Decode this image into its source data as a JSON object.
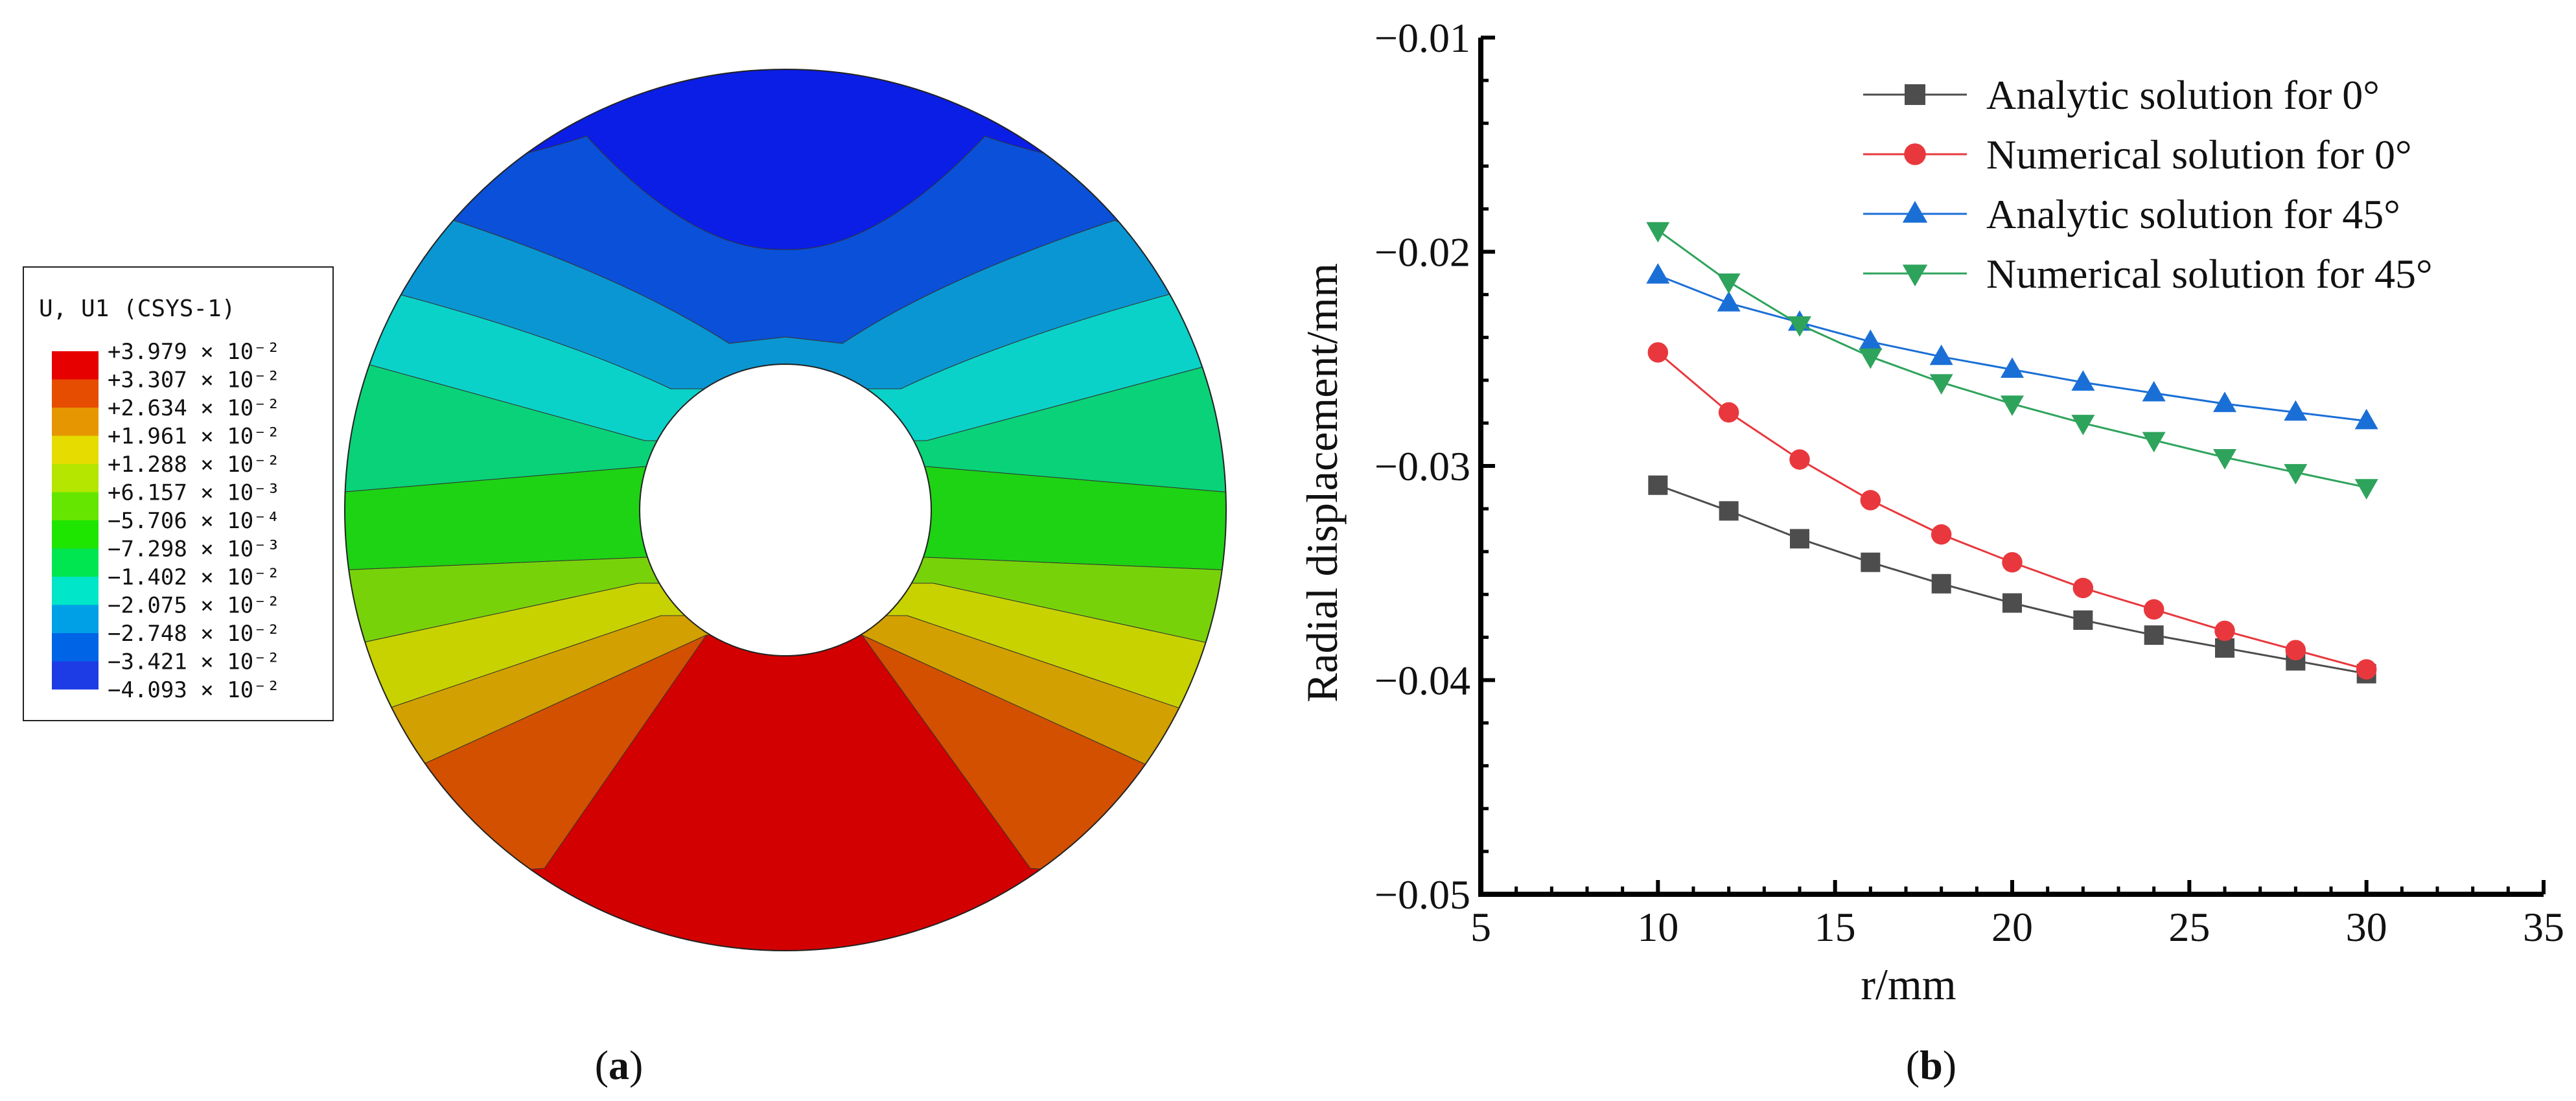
{
  "panel_a": {
    "caption_open": "(",
    "caption_letter": "a",
    "caption_close": ")",
    "legend_title": "U, U1 (CSYS-1)",
    "legend_labels": [
      "+3.979 × 10⁻²",
      "+3.307 × 10⁻²",
      "+2.634 × 10⁻²",
      "+1.961 × 10⁻²",
      "+1.288 × 10⁻²",
      "+6.157 × 10⁻³",
      "−5.706 × 10⁻⁴",
      "−7.298 × 10⁻³",
      "−1.402 × 10⁻²",
      "−2.075 × 10⁻²",
      "−2.748 × 10⁻²",
      "−3.421 × 10⁻²",
      "−4.093 × 10⁻²"
    ],
    "legend_colors": [
      "#e60000",
      "#e64d00",
      "#e69600",
      "#e6dc00",
      "#b4e600",
      "#64e600",
      "#1ee600",
      "#00e650",
      "#00e6c8",
      "#00a0e6",
      "#0064e6",
      "#1e3ce6"
    ],
    "contour_colors": {
      "blue": "#0a1ee6",
      "blue2": "#0a50d8",
      "lightblue": "#0a96d2",
      "cyan": "#0ad2c8",
      "teal": "#0ad278",
      "green": "#1ed214",
      "yellowgreen": "#78d20a",
      "yellow": "#c8d200",
      "orange": "#d2a000",
      "darkorange": "#d25000",
      "red": "#d20000"
    }
  },
  "panel_b": {
    "caption_open": "(",
    "caption_letter": "b",
    "caption_close": ")"
  },
  "chart_data": {
    "type": "line",
    "xlabel": "r/mm",
    "ylabel": "Radial displacement/mm",
    "xlim": [
      5,
      35
    ],
    "ylim": [
      -0.05,
      -0.01
    ],
    "xticks": [
      5,
      10,
      15,
      20,
      25,
      30,
      35
    ],
    "xtick_labels": [
      "5",
      "10",
      "15",
      "20",
      "25",
      "30",
      "35"
    ],
    "yticks": [
      -0.01,
      -0.02,
      -0.03,
      -0.04,
      -0.05
    ],
    "ytick_labels": [
      "−0.01",
      "−0.02",
      "−0.03",
      "−0.04",
      "−0.05"
    ],
    "grid": false,
    "legend_position": "top-right",
    "x": [
      10,
      12,
      14,
      16,
      18,
      20,
      22,
      24,
      26,
      28,
      30
    ],
    "series": [
      {
        "name": "Analytic solution for 0°",
        "color": "#4d4d4d",
        "marker": "square",
        "values": [
          -0.0309,
          -0.0321,
          -0.0334,
          -0.0345,
          -0.0355,
          -0.0364,
          -0.0372,
          -0.0379,
          -0.0385,
          -0.0391,
          -0.0397
        ]
      },
      {
        "name": "Numerical solution for 0°",
        "color": "#e8383d",
        "marker": "circle",
        "values": [
          -0.0247,
          -0.0275,
          -0.0297,
          -0.0316,
          -0.0332,
          -0.0345,
          -0.0357,
          -0.0367,
          -0.0377,
          -0.0386,
          -0.0395
        ]
      },
      {
        "name": "Analytic solution for 45°",
        "color": "#1a6fd6",
        "marker": "triangle-up",
        "values": [
          -0.0211,
          -0.0224,
          -0.0233,
          -0.0242,
          -0.0249,
          -0.0255,
          -0.0261,
          -0.0266,
          -0.0271,
          -0.0275,
          -0.0279
        ]
      },
      {
        "name": "Numerical solution for 45°",
        "color": "#2ea35c",
        "marker": "triangle-down",
        "values": [
          -0.019,
          -0.0214,
          -0.0234,
          -0.0249,
          -0.0261,
          -0.0271,
          -0.028,
          -0.0288,
          -0.0296,
          -0.0303,
          -0.031
        ]
      }
    ]
  }
}
